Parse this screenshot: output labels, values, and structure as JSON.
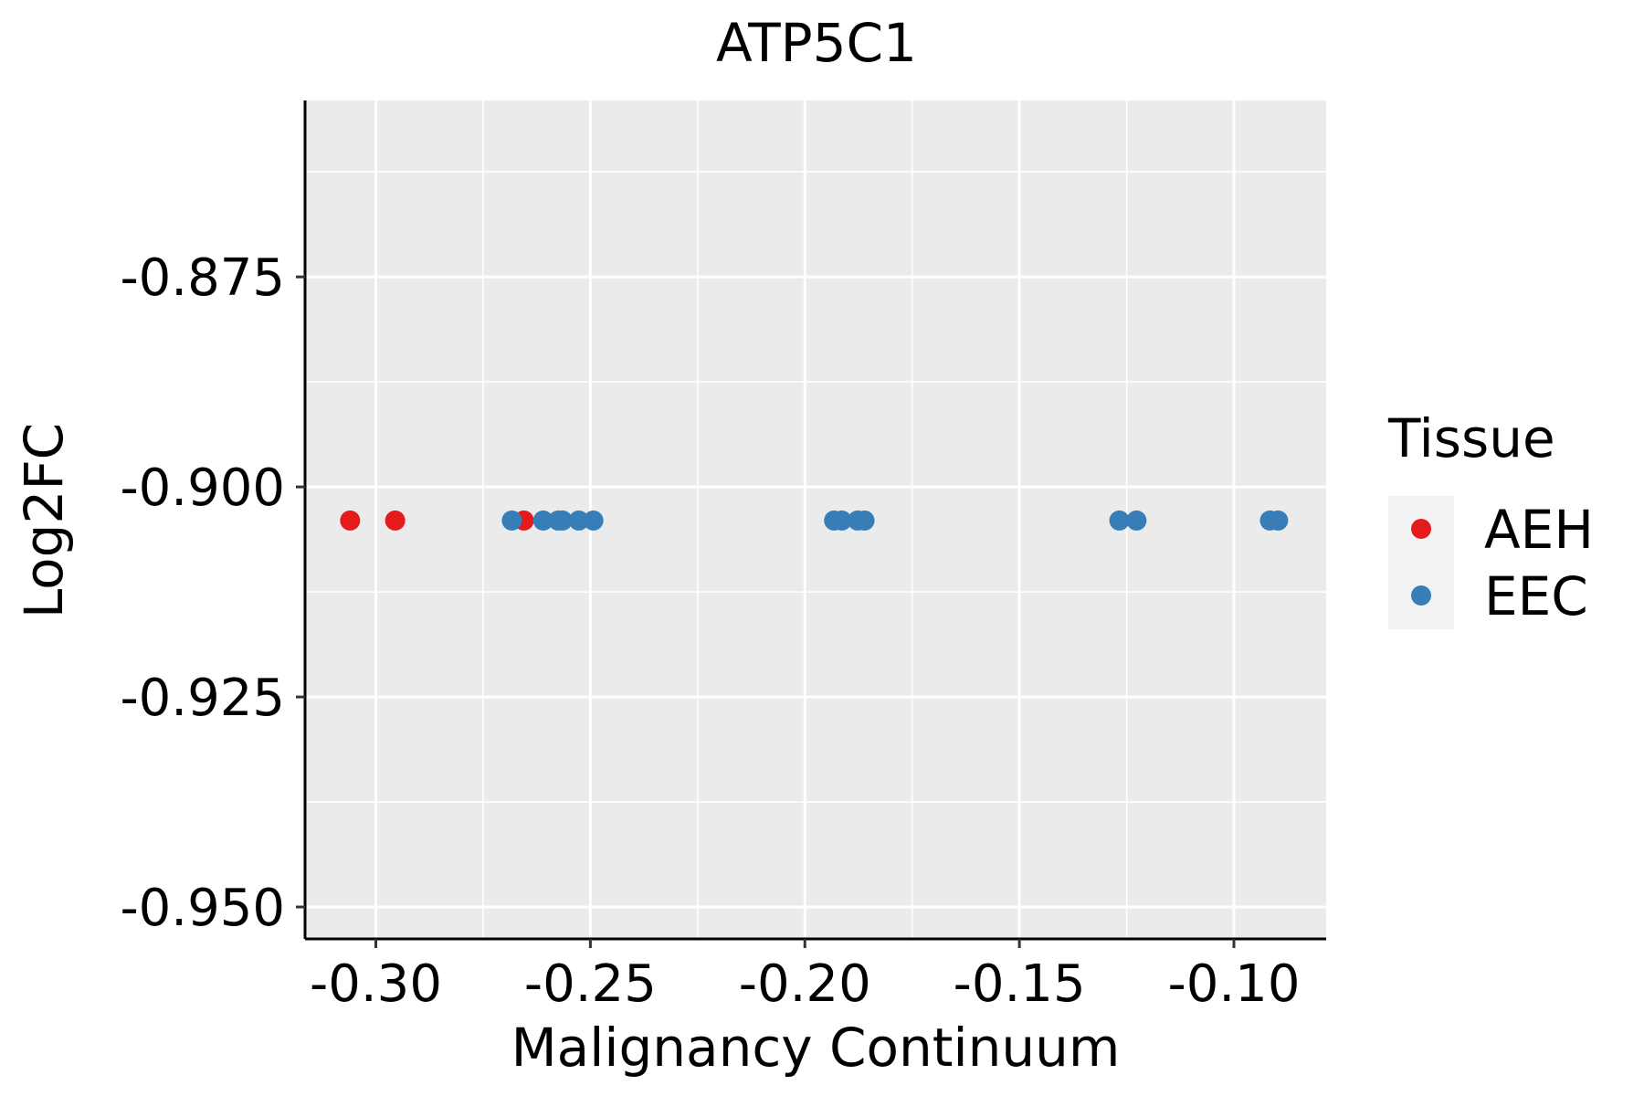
{
  "chart_data": {
    "type": "scatter",
    "title": "ATP5C1",
    "xlabel": "Malignancy Continuum",
    "ylabel": "Log2FC",
    "xlim": [
      -0.3165,
      -0.0785
    ],
    "ylim": [
      -0.9538,
      -0.854
    ],
    "x_ticks": [
      -0.3,
      -0.25,
      -0.2,
      -0.15,
      -0.1
    ],
    "x_tick_labels": [
      "-0.30",
      "-0.25",
      "-0.20",
      "-0.15",
      "-0.10"
    ],
    "y_ticks": [
      -0.875,
      -0.9,
      -0.925,
      -0.95
    ],
    "y_tick_labels": [
      "-0.875",
      "-0.900",
      "-0.925",
      "-0.950"
    ],
    "grid": true,
    "legend": {
      "title": "Tissue",
      "position": "right",
      "entries": [
        {
          "label": "AEH",
          "color": "#E41A1C"
        },
        {
          "label": "EEC",
          "color": "#377EB8"
        }
      ]
    },
    "series": [
      {
        "name": "AEH",
        "color": "#E41A1C",
        "points": [
          {
            "x": -0.306,
            "y": -0.904
          },
          {
            "x": -0.2955,
            "y": -0.904
          },
          {
            "x": -0.2655,
            "y": -0.904
          }
        ]
      },
      {
        "name": "EEC",
        "color": "#377EB8",
        "points": [
          {
            "x": -0.2683,
            "y": -0.904
          },
          {
            "x": -0.261,
            "y": -0.904
          },
          {
            "x": -0.2575,
            "y": -0.904
          },
          {
            "x": -0.2565,
            "y": -0.904
          },
          {
            "x": -0.2527,
            "y": -0.904
          },
          {
            "x": -0.2493,
            "y": -0.904
          },
          {
            "x": -0.1932,
            "y": -0.904
          },
          {
            "x": -0.1914,
            "y": -0.904
          },
          {
            "x": -0.1877,
            "y": -0.904
          },
          {
            "x": -0.1861,
            "y": -0.904
          },
          {
            "x": -0.1267,
            "y": -0.904
          },
          {
            "x": -0.1227,
            "y": -0.904
          },
          {
            "x": -0.0916,
            "y": -0.904
          },
          {
            "x": -0.0897,
            "y": -0.904
          }
        ]
      }
    ]
  }
}
